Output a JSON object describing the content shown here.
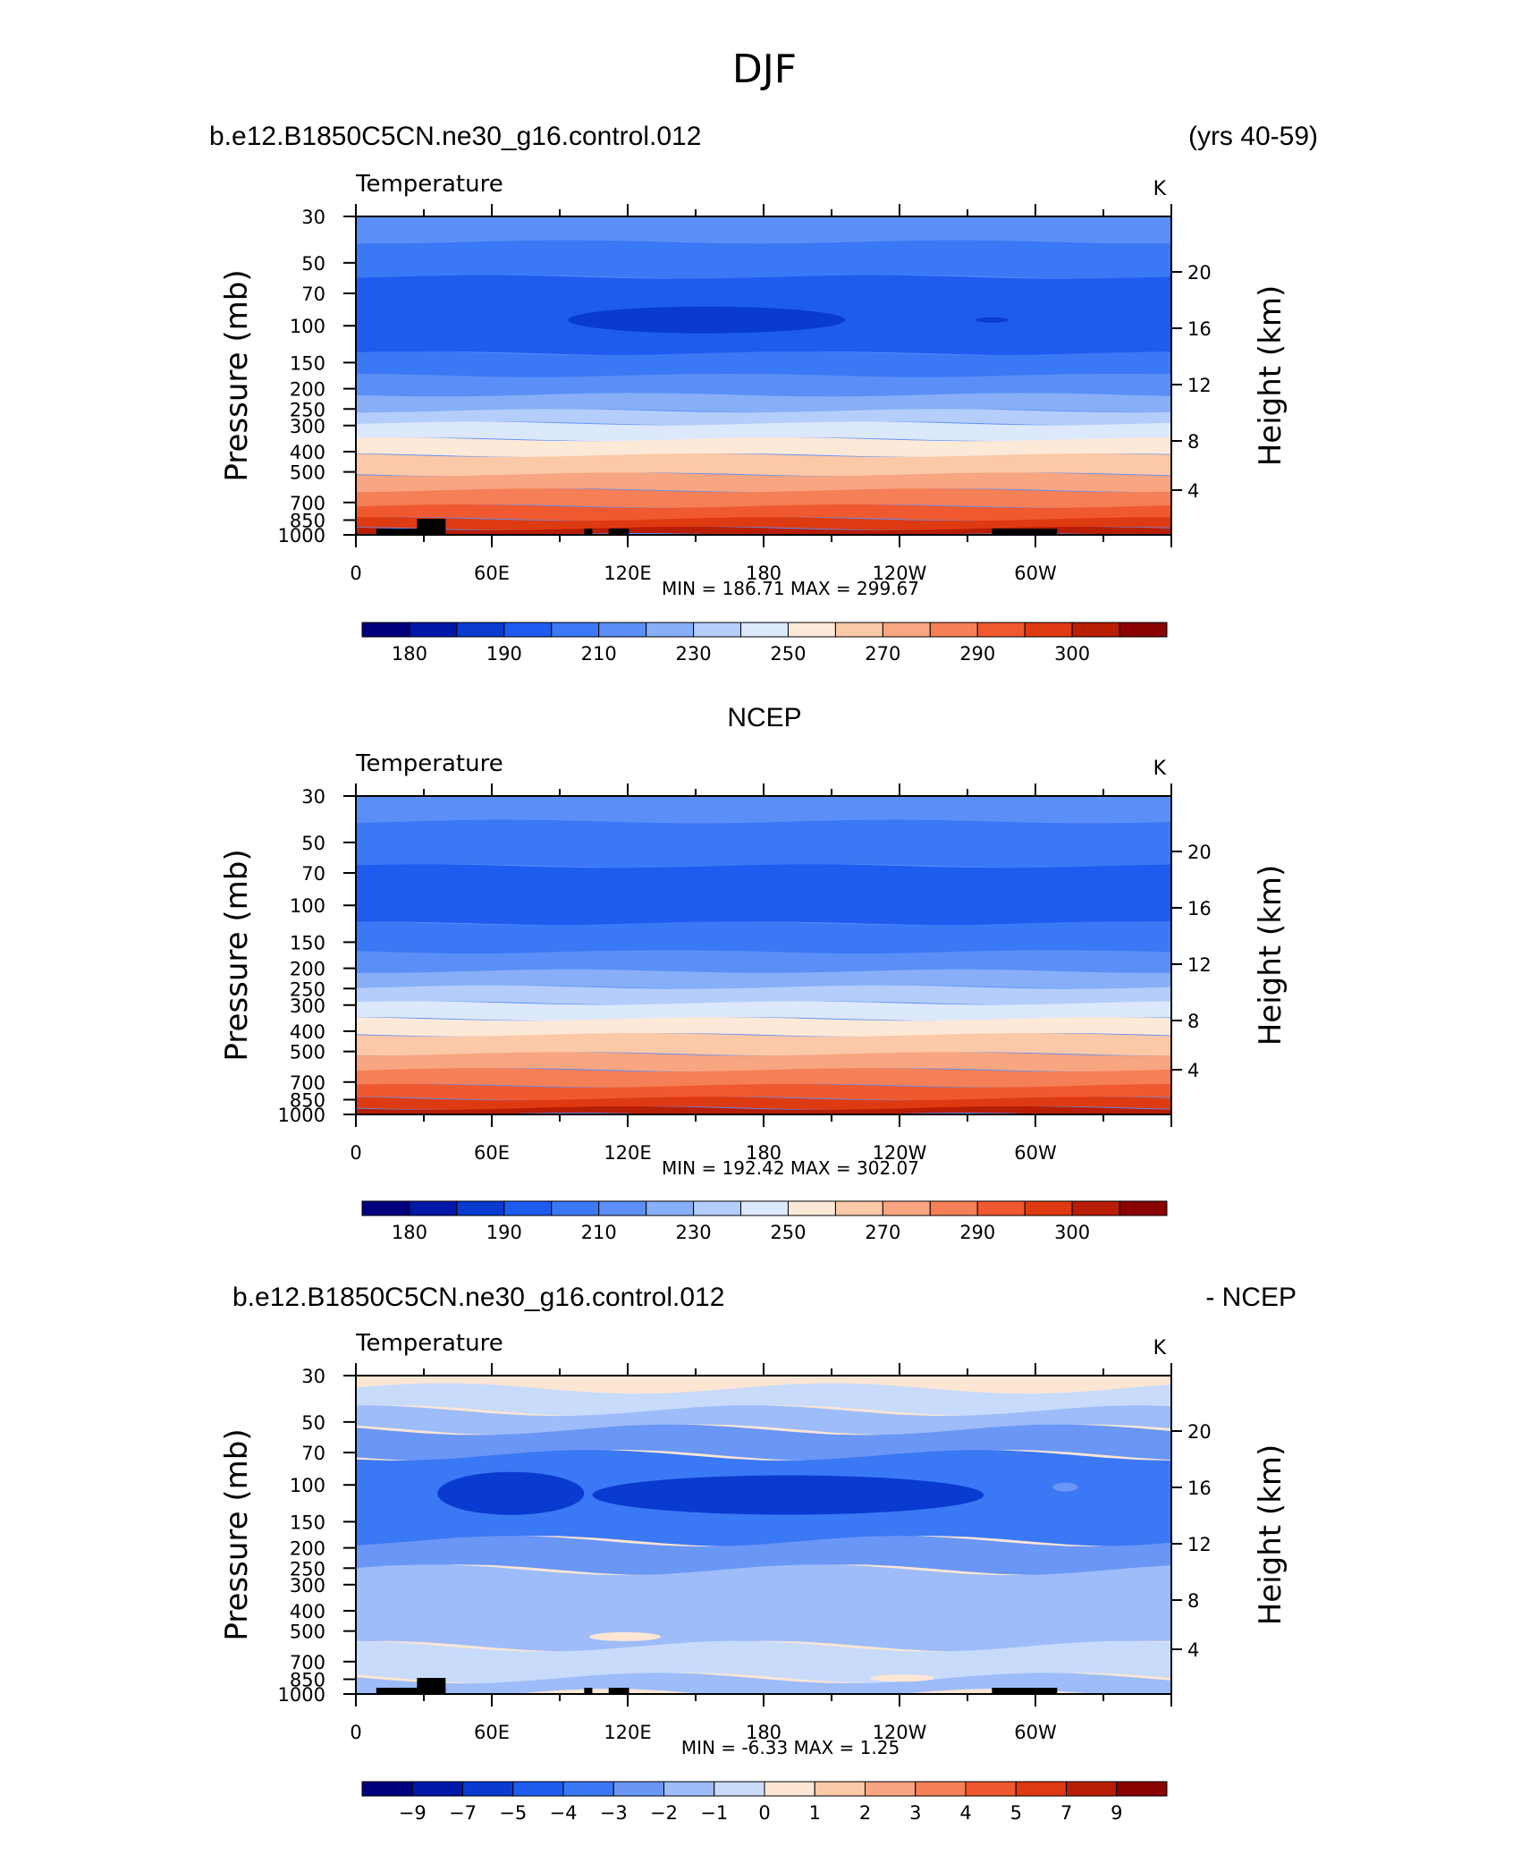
{
  "figure_title": "DJF",
  "chart_data": [
    {
      "type": "heatmap",
      "panel_title_left": "b.e12.B1850C5CN.ne30_g16.control.012",
      "panel_title_right": "(yrs 40-59)",
      "variable": "Temperature",
      "units": "K",
      "ylabel": "Pressure  (mb)",
      "ylabel_right": "Height  (km)",
      "y_ticks": [
        "30",
        "50",
        "70",
        "100",
        "150",
        "200",
        "250",
        "300",
        "400",
        "500",
        "700",
        "850",
        "1000"
      ],
      "y_right_ticks": [
        "20",
        "16",
        "12",
        "8",
        "4"
      ],
      "x_ticks": [
        "0",
        "60E",
        "120E",
        "180",
        "120W",
        "60W"
      ],
      "stats": "MIN =  186.71   MAX =  299.67",
      "min": 186.71,
      "max": 299.67,
      "colorbar_labels": [
        "180",
        "190",
        "210",
        "230",
        "250",
        "270",
        "290",
        "300"
      ]
    },
    {
      "type": "heatmap",
      "panel_title_center": "NCEP",
      "variable": "Temperature",
      "units": "K",
      "ylabel": "Pressure  (mb)",
      "ylabel_right": "Height  (km)",
      "y_ticks": [
        "30",
        "50",
        "70",
        "100",
        "150",
        "200",
        "250",
        "300",
        "400",
        "500",
        "700",
        "850",
        "1000"
      ],
      "y_right_ticks": [
        "20",
        "16",
        "12",
        "8",
        "4"
      ],
      "x_ticks": [
        "0",
        "60E",
        "120E",
        "180",
        "120W",
        "60W"
      ],
      "stats": "MIN =  192.42   MAX =  302.07",
      "min": 192.42,
      "max": 302.07,
      "colorbar_labels": [
        "180",
        "190",
        "210",
        "230",
        "250",
        "270",
        "290",
        "300"
      ]
    },
    {
      "type": "heatmap",
      "panel_title_left": "b.e12.B1850C5CN.ne30_g16.control.012",
      "panel_title_right": "- NCEP",
      "variable": "Temperature",
      "units": "K",
      "ylabel": "Pressure  (mb)",
      "ylabel_right": "Height  (km)",
      "y_ticks": [
        "30",
        "50",
        "70",
        "100",
        "150",
        "200",
        "250",
        "300",
        "400",
        "500",
        "700",
        "850",
        "1000"
      ],
      "y_right_ticks": [
        "20",
        "16",
        "12",
        "8",
        "4"
      ],
      "x_ticks": [
        "0",
        "60E",
        "120E",
        "180",
        "120W",
        "60W"
      ],
      "stats": "MIN =    -6.33   MAX =     1.25",
      "min": -6.33,
      "max": 1.25,
      "colorbar_labels": [
        "-9",
        "-7",
        "-5",
        "-4",
        "-3",
        "-2",
        "-1",
        "0",
        "1",
        "2",
        "3",
        "4",
        "5",
        "7",
        "9"
      ]
    }
  ],
  "colors": {
    "absolute_scale": [
      "#00007f",
      "#0018a8",
      "#0a3bd0",
      "#1e5cf0",
      "#3b78f5",
      "#5b8ff7",
      "#88aef8",
      "#b4cdfa",
      "#dce8fc",
      "#fde9d8",
      "#fbc8a8",
      "#f8a581",
      "#f57f57",
      "#f0592f",
      "#de3a12",
      "#b81d05",
      "#8a0300"
    ],
    "diff_scale": [
      "#00007f",
      "#0018a8",
      "#0a3bd0",
      "#1e5cf0",
      "#3b78f5",
      "#6a96f6",
      "#9dbcf9",
      "#c9dbfb",
      "#fde6d3",
      "#fbc8a8",
      "#f8a581",
      "#f57f57",
      "#f0592f",
      "#de3a12",
      "#b81d05",
      "#8a0300"
    ],
    "topography": "#000000"
  }
}
